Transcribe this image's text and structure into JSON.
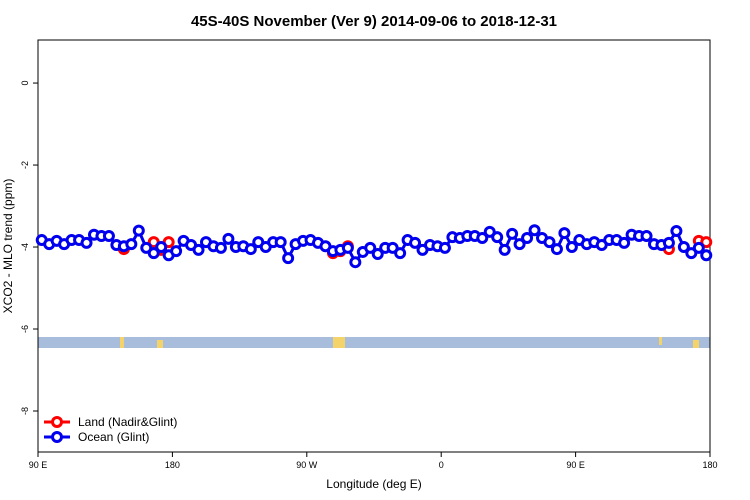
{
  "chart_data": {
    "type": "line",
    "title": "45S-40S November (Ver 9)   2014-09-06 to 2018-12-31",
    "xlabel": "Longitude (deg E)",
    "ylabel": "XCO2 - MLO trend (ppm)",
    "xlim": [
      90,
      540
    ],
    "ylim": [
      -9,
      1.05
    ],
    "xticks": [
      {
        "value": 90,
        "label": "90 E"
      },
      180,
      {
        "value": 270,
        "label": "90 W"
      },
      {
        "value": 360,
        "label": "0"
      },
      {
        "value": 450,
        "label": "90 E"
      },
      {
        "value": 540,
        "label": "180"
      }
    ],
    "yticks": [
      0,
      -2,
      -4,
      -6,
      -8
    ],
    "grid": false,
    "legend": "bottom-left",
    "x": [
      92.5,
      97.5,
      102.5,
      107.5,
      112.5,
      117.5,
      122.5,
      127.5,
      132.5,
      137.5,
      142.5,
      147.5,
      152.5,
      157.5,
      162.5,
      167.5,
      172.5,
      177.5,
      182.5,
      187.5,
      192.5,
      197.5,
      202.5,
      207.5,
      212.5,
      217.5,
      222.5,
      227.5,
      232.5,
      237.5,
      242.5,
      247.5,
      252.5,
      257.5,
      262.5,
      267.5,
      272.5,
      277.5,
      282.5,
      287.5,
      292.5,
      297.5,
      302.5,
      307.5,
      312.5,
      317.5,
      322.5,
      327.5,
      332.5,
      337.5,
      342.5,
      347.5,
      352.5,
      357.5,
      362.5,
      367.5,
      372.5,
      377.5,
      382.5,
      387.5,
      392.5,
      397.5,
      402.5,
      407.5,
      412.5,
      417.5,
      422.5,
      427.5,
      432.5,
      437.5,
      442.5,
      447.5,
      452.5,
      457.5,
      462.5,
      467.5,
      472.5,
      477.5,
      482.5,
      487.5,
      492.5,
      497.5,
      502.5,
      507.5,
      512.5,
      517.5,
      522.5,
      527.5,
      532.5,
      537.5
    ],
    "series": [
      {
        "name": "Land (Nadir&Glint)",
        "color": "#ff0000",
        "values": [
          null,
          null,
          null,
          null,
          null,
          null,
          null,
          null,
          null,
          null,
          null,
          -4.05,
          null,
          null,
          null,
          -3.88,
          -4.07,
          -3.88,
          null,
          null,
          null,
          null,
          null,
          null,
          null,
          null,
          null,
          null,
          null,
          null,
          null,
          null,
          null,
          null,
          null,
          null,
          null,
          null,
          null,
          -4.15,
          -4.1,
          -3.98,
          null,
          null,
          null,
          null,
          null,
          null,
          null,
          null,
          null,
          null,
          null,
          null,
          null,
          null,
          null,
          null,
          null,
          null,
          null,
          null,
          null,
          null,
          null,
          null,
          null,
          null,
          null,
          null,
          null,
          null,
          null,
          null,
          null,
          null,
          null,
          null,
          null,
          null,
          null,
          null,
          null,
          null,
          -4.05,
          null,
          null,
          null,
          -3.85,
          -3.88
        ]
      },
      {
        "name": "Ocean (Glint)",
        "color": "#0000ee",
        "values": [
          -3.83,
          -3.93,
          -3.85,
          -3.93,
          -3.83,
          -3.83,
          -3.9,
          -3.7,
          -3.73,
          -3.73,
          -3.95,
          -3.98,
          -3.93,
          -3.6,
          -4.02,
          -4.15,
          -4.0,
          -4.2,
          -4.1,
          -3.85,
          -3.95,
          -4.07,
          -3.88,
          -3.98,
          -4.02,
          -3.8,
          -4.0,
          -3.98,
          -4.05,
          -3.88,
          -4.0,
          -3.88,
          -3.88,
          -4.27,
          -3.93,
          -3.85,
          -3.83,
          -3.9,
          -3.98,
          -4.1,
          -4.07,
          -4.02,
          -4.37,
          -4.12,
          -4.02,
          -4.17,
          -4.02,
          -4.02,
          -4.15,
          -3.83,
          -3.9,
          -4.07,
          -3.95,
          -3.98,
          -4.02,
          -3.76,
          -3.78,
          -3.73,
          -3.73,
          -3.78,
          -3.63,
          -3.76,
          -4.07,
          -3.68,
          -3.93,
          -3.78,
          -3.59,
          -3.78,
          -3.88,
          -4.05,
          -3.66,
          -4.0,
          -3.83,
          -3.93,
          -3.88,
          -3.95,
          -3.83,
          -3.83,
          -3.9,
          -3.7,
          -3.73,
          -3.73,
          -3.93,
          -3.95,
          -3.9,
          -3.61,
          -4.0,
          -4.15,
          -4.02,
          -4.2
        ]
      }
    ]
  }
}
